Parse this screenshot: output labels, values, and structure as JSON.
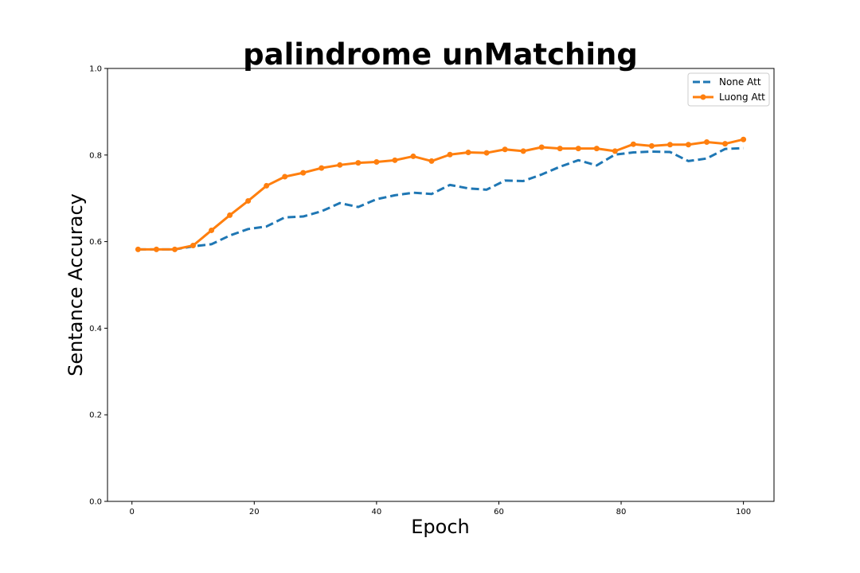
{
  "chart_data": {
    "type": "line",
    "title": "palindrome unMatching",
    "xlabel": "Epoch",
    "ylabel": "Sentance Accuracy",
    "xlim": [
      -4,
      105
    ],
    "ylim": [
      0.0,
      1.0
    ],
    "xticks": [
      "0",
      "20",
      "40",
      "60",
      "80",
      "100"
    ],
    "yticks": [
      "0.0",
      "0.2",
      "0.4",
      "0.6",
      "0.8",
      "1.0"
    ],
    "grid": false,
    "legend_position": "top-right",
    "x": [
      1,
      4,
      7,
      10,
      13,
      16,
      19,
      22,
      25,
      28,
      31,
      34,
      37,
      40,
      43,
      46,
      49,
      52,
      55,
      58,
      61,
      64,
      67,
      70,
      73,
      76,
      79,
      82,
      85,
      88,
      91,
      94,
      97,
      100
    ],
    "series": [
      {
        "name": "None Att",
        "color": "#1f77b4",
        "style": "dashed",
        "marker": "none",
        "values": [
          0.582,
          0.582,
          0.582,
          0.589,
          0.594,
          0.614,
          0.629,
          0.635,
          0.656,
          0.658,
          0.67,
          0.689,
          0.68,
          0.698,
          0.707,
          0.713,
          0.71,
          0.731,
          0.723,
          0.72,
          0.741,
          0.74,
          0.755,
          0.773,
          0.788,
          0.776,
          0.801,
          0.806,
          0.808,
          0.807,
          0.786,
          0.792,
          0.814,
          0.816
        ]
      },
      {
        "name": "Luong Att",
        "color": "#ff7f0e",
        "style": "solid",
        "marker": "circle",
        "values": [
          0.582,
          0.582,
          0.582,
          0.591,
          0.626,
          0.661,
          0.694,
          0.729,
          0.75,
          0.759,
          0.77,
          0.777,
          0.782,
          0.784,
          0.788,
          0.797,
          0.786,
          0.801,
          0.806,
          0.805,
          0.813,
          0.809,
          0.818,
          0.815,
          0.815,
          0.815,
          0.809,
          0.825,
          0.821,
          0.824,
          0.824,
          0.83,
          0.826,
          0.836
        ]
      }
    ]
  }
}
